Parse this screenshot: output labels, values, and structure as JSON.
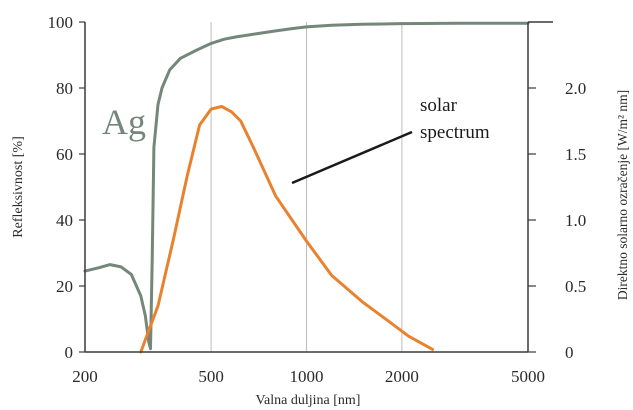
{
  "chart_data": {
    "type": "line",
    "x_scale": "log",
    "xlim": [
      200,
      5000
    ],
    "xticks": [
      200,
      500,
      1000,
      2000,
      5000
    ],
    "xlabel": "Valna duljina  [nm]",
    "ylabel_left": "Refleksivnost [%]",
    "ylim_left": [
      0,
      100
    ],
    "yticks_left": [
      0,
      20,
      40,
      60,
      80,
      100
    ],
    "ylabel_right": "Direktno solarno ozračenje [W/m² nm]",
    "ylim_right": [
      0,
      2.5
    ],
    "yticks_right": [
      0,
      0.5,
      1.0,
      1.5,
      2.0
    ],
    "ytick_labels_right": [
      "0",
      "0.5",
      "1.0",
      "1.5",
      "2.0"
    ],
    "grid": "vertical",
    "series": [
      {
        "name": "Ag",
        "axis": "left",
        "color": "#74877a",
        "x": [
          200,
          220,
          240,
          260,
          280,
          300,
          310,
          318,
          322,
          326,
          330,
          340,
          350,
          370,
          400,
          450,
          500,
          550,
          600,
          700,
          800,
          900,
          1000,
          1200,
          1500,
          2000,
          3000,
          4000,
          5000
        ],
        "y": [
          24.5,
          25.5,
          26.5,
          25.8,
          23.5,
          17,
          11,
          3,
          1,
          28,
          62,
          75,
          80,
          85.5,
          89,
          91.5,
          93.5,
          94.8,
          95.5,
          96.5,
          97.3,
          98,
          98.5,
          99,
          99.3,
          99.5,
          99.6,
          99.6,
          99.6
        ]
      },
      {
        "name": "",
        "axis": "right",
        "color": "#e8822e",
        "x": [
          300,
          340,
          380,
          420,
          460,
          500,
          540,
          580,
          620,
          680,
          800,
          1000,
          1200,
          1500,
          1800,
          2100,
          2500
        ],
        "y": [
          0,
          0.35,
          0.85,
          1.33,
          1.72,
          1.84,
          1.86,
          1.82,
          1.75,
          1.55,
          1.18,
          0.84,
          0.58,
          0.38,
          0.24,
          0.12,
          0.02
        ]
      }
    ],
    "annotations": {
      "series_label": "Ag",
      "solar_line1": "solar",
      "solar_line2": "spectrum"
    }
  }
}
